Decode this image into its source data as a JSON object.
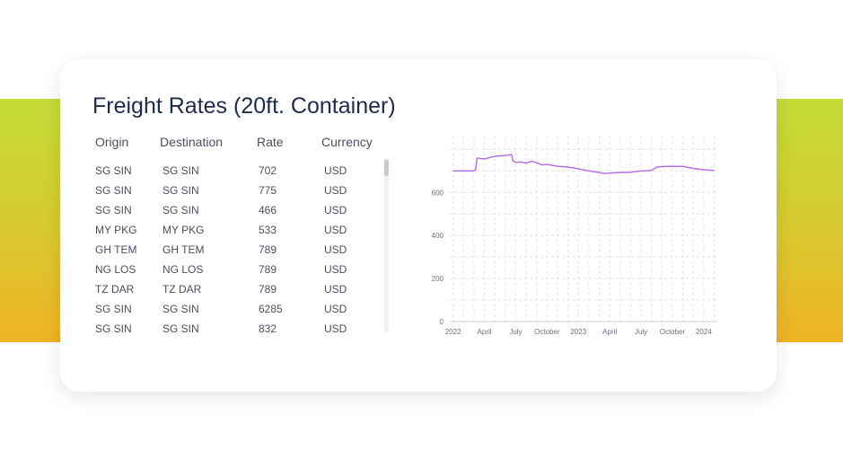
{
  "title": "Freight Rates (20ft. Container)",
  "table": {
    "columns": [
      "Origin",
      "Destination",
      "Rate",
      "Currency"
    ],
    "rows": [
      [
        "SG SIN",
        "SG SIN",
        "702",
        "USD"
      ],
      [
        "SG SIN",
        "SG SIN",
        "775",
        "USD"
      ],
      [
        "SG SIN",
        "SG SIN",
        "466",
        "USD"
      ],
      [
        "MY PKG",
        "MY PKG",
        "533",
        "USD"
      ],
      [
        "GH TEM",
        "GH TEM",
        "789",
        "USD"
      ],
      [
        "NG LOS",
        "NG LOS",
        "789",
        "USD"
      ],
      [
        "TZ DAR",
        "TZ DAR",
        "789",
        "USD"
      ],
      [
        "SG SIN",
        "SG SIN",
        "6285",
        "USD"
      ],
      [
        "SG SIN",
        "SG SIN",
        "832",
        "USD"
      ]
    ]
  },
  "chart_data": {
    "type": "line",
    "title": "",
    "xlabel": "",
    "ylabel": "",
    "ylim": [
      0,
      860
    ],
    "xlim": [
      -0.4,
      25.3
    ],
    "x_ticks": [
      {
        "label": "2022",
        "value": 0
      },
      {
        "label": "April",
        "value": 3
      },
      {
        "label": "July",
        "value": 6
      },
      {
        "label": "October",
        "value": 9
      },
      {
        "label": "2023",
        "value": 12
      },
      {
        "label": "April",
        "value": 15
      },
      {
        "label": "July",
        "value": 18
      },
      {
        "label": "October",
        "value": 21
      },
      {
        "label": "2024",
        "value": 24
      }
    ],
    "y_ticks": [
      {
        "label": "0",
        "value": 0
      },
      {
        "label": "200",
        "value": 200
      },
      {
        "label": "400",
        "value": 400
      },
      {
        "label": "600",
        "value": 600
      }
    ],
    "grid": true,
    "colors": {
      "line": "#b36ae2",
      "grid": "#e4e4e8"
    },
    "series": [
      {
        "x": [
          0,
          2.0,
          2.15,
          2.3,
          3,
          4,
          5,
          5.6,
          5.75,
          6,
          6.5,
          7,
          7.5,
          8,
          8.5,
          9,
          10,
          11,
          12,
          13,
          14,
          14.5,
          15,
          16,
          17,
          18,
          19,
          19.5,
          20,
          21,
          22,
          23,
          24,
          25
        ],
        "y": [
          700,
          700,
          705,
          760,
          756,
          768,
          772,
          776,
          745,
          740,
          742,
          736,
          745,
          738,
          728,
          730,
          722,
          718,
          710,
          700,
          693,
          688,
          690,
          693,
          694,
          700,
          702,
          718,
          720,
          722,
          721,
          712,
          706,
          702
        ]
      }
    ]
  }
}
